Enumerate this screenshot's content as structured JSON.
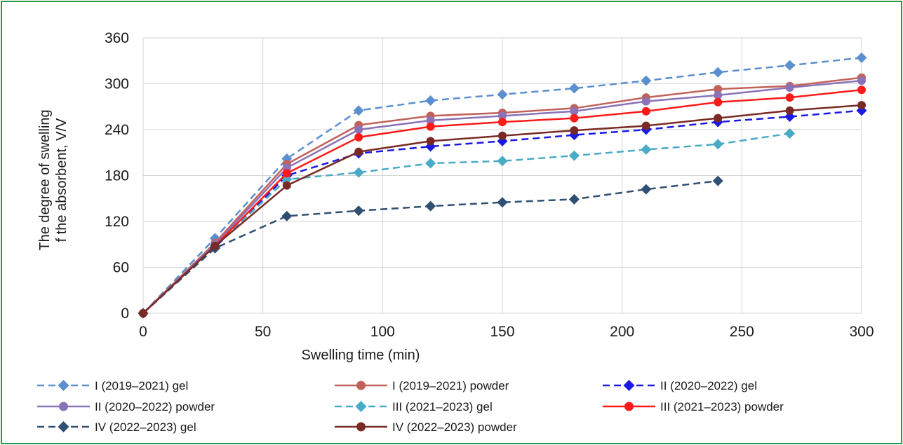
{
  "chart_data": {
    "type": "line",
    "xlabel": "Swelling time (min)",
    "ylabel_lines": [
      "The degree of swelling",
      "f the absorbent, V/V"
    ],
    "xlim": [
      0,
      300
    ],
    "ylim": [
      0,
      360
    ],
    "xticks": [
      0,
      50,
      100,
      150,
      200,
      250,
      300
    ],
    "yticks": [
      0,
      60,
      120,
      180,
      240,
      300,
      360
    ],
    "grid": true,
    "legend_position": "bottom",
    "series": [
      {
        "name": "I (2019–2021) gel",
        "color": "#5b8fcf",
        "dash": "dashed",
        "marker": "diamond",
        "x": [
          0,
          30,
          60,
          90,
          120,
          150,
          180,
          210,
          240,
          270,
          300
        ],
        "y": [
          0,
          98,
          202,
          265,
          278,
          286,
          294,
          304,
          315,
          324,
          334
        ]
      },
      {
        "name": "I (2019–2021) powder",
        "color": "#c0625a",
        "dash": "solid",
        "marker": "circle",
        "x": [
          0,
          30,
          60,
          90,
          120,
          150,
          180,
          210,
          240,
          270,
          300
        ],
        "y": [
          0,
          92,
          195,
          246,
          258,
          262,
          268,
          282,
          293,
          297,
          308
        ]
      },
      {
        "name": "II (2020–2022) gel",
        "color": "#1a1ae6",
        "dash": "dashed",
        "marker": "diamond",
        "x": [
          0,
          30,
          60,
          90,
          120,
          150,
          180,
          210,
          240,
          270,
          300
        ],
        "y": [
          0,
          86,
          180,
          209,
          218,
          225,
          233,
          240,
          250,
          257,
          265
        ]
      },
      {
        "name": "II (2020–2022) powder",
        "color": "#8a72b8",
        "dash": "solid",
        "marker": "circle",
        "x": [
          0,
          30,
          60,
          90,
          120,
          150,
          180,
          210,
          240,
          270,
          300
        ],
        "y": [
          0,
          90,
          190,
          240,
          252,
          258,
          264,
          277,
          285,
          295,
          304
        ]
      },
      {
        "name": "III (2021–2023) gel",
        "color": "#4aabc6",
        "dash": "dashed",
        "marker": "diamond",
        "x": [
          0,
          30,
          60,
          90,
          120,
          150,
          180,
          210,
          240,
          270
        ],
        "y": [
          0,
          88,
          175,
          184,
          196,
          199,
          206,
          214,
          221,
          235
        ]
      },
      {
        "name": "III (2021–2023) powder",
        "color": "#ff1a1a",
        "dash": "solid",
        "marker": "circle",
        "x": [
          0,
          30,
          60,
          90,
          120,
          150,
          180,
          210,
          240,
          270,
          300
        ],
        "y": [
          0,
          88,
          183,
          230,
          244,
          250,
          255,
          264,
          276,
          282,
          292
        ]
      },
      {
        "name": "IV (2022–2023) gel",
        "color": "#2f4f73",
        "dash": "dashed",
        "marker": "diamond",
        "x": [
          0,
          30,
          60,
          90,
          120,
          150,
          180,
          210,
          240
        ],
        "y": [
          0,
          85,
          127,
          134,
          140,
          145,
          149,
          162,
          173
        ]
      },
      {
        "name": "IV (2022–2023) powder",
        "color": "#7a2a24",
        "dash": "solid",
        "marker": "circle",
        "x": [
          0,
          30,
          60,
          90,
          120,
          150,
          180,
          210,
          240,
          270,
          300
        ],
        "y": [
          0,
          88,
          167,
          211,
          225,
          232,
          239,
          245,
          255,
          265,
          272
        ]
      }
    ]
  }
}
